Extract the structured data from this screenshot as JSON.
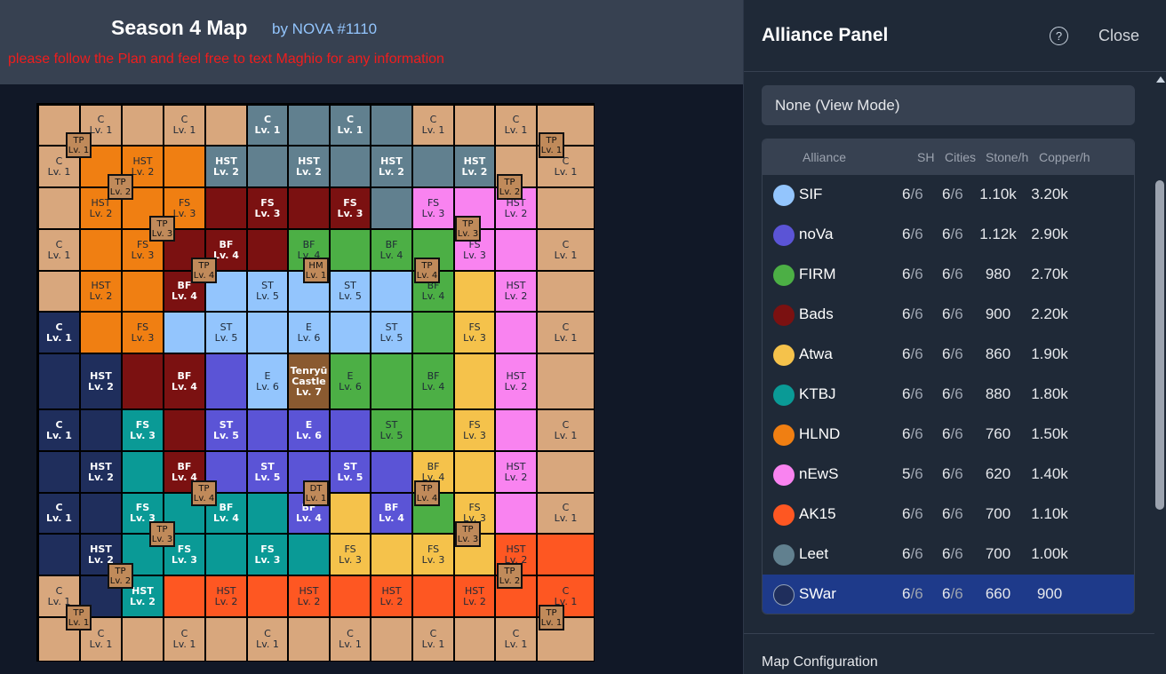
{
  "header": {
    "title": "Season 4 Map",
    "byline": "by NOVA #1110",
    "notice": "please follow the Plan and feel free to text Maghio for any information"
  },
  "colors": {
    "SIF": "#93c5fd",
    "noVa": "#5b54d6",
    "FIRM": "#4caf45",
    "Bads": "#7b1111",
    "Atwa": "#f5c24b",
    "KTBJ": "#0a9a96",
    "HLND": "#f07f12",
    "nEwS": "#f983f0",
    "AK15": "#fe5722",
    "Leet": "#61808f",
    "SWar": "#1f2e5c",
    "none": "#d8a77d",
    "castle": "#8a5a30"
  },
  "map": {
    "grid": 13,
    "rows": [
      [
        [
          "none",
          "",
          ""
        ],
        [
          "none",
          "C",
          "Lv. 1"
        ],
        [
          "none",
          "",
          ""
        ],
        [
          "none",
          "C",
          "Lv. 1"
        ],
        [
          "none",
          "",
          ""
        ],
        [
          "Leet",
          "C",
          "Lv. 1"
        ],
        [
          "Leet",
          "",
          ""
        ],
        [
          "Leet",
          "C",
          "Lv. 1"
        ],
        [
          "Leet",
          "",
          ""
        ],
        [
          "none",
          "C",
          "Lv. 1"
        ],
        [
          "none",
          "",
          ""
        ],
        [
          "none",
          "C",
          "Lv. 1"
        ],
        [
          "none",
          "",
          ""
        ]
      ],
      [
        [
          "none",
          "C",
          "Lv. 1"
        ],
        [
          "HLND",
          "",
          ""
        ],
        [
          "HLND",
          "HST",
          "Lv. 2"
        ],
        [
          "HLND",
          "",
          ""
        ],
        [
          "Leet",
          "HST",
          "Lv. 2"
        ],
        [
          "Leet",
          "",
          ""
        ],
        [
          "Leet",
          "HST",
          "Lv. 2"
        ],
        [
          "Leet",
          "",
          ""
        ],
        [
          "Leet",
          "HST",
          "Lv. 2"
        ],
        [
          "Leet",
          "",
          ""
        ],
        [
          "Leet",
          "HST",
          "Lv. 2"
        ],
        [
          "none",
          "",
          ""
        ],
        [
          "none",
          "C",
          "Lv. 1"
        ]
      ],
      [
        [
          "none",
          "",
          ""
        ],
        [
          "HLND",
          "HST",
          "Lv. 2"
        ],
        [
          "HLND",
          "",
          ""
        ],
        [
          "HLND",
          "FS",
          "Lv. 3"
        ],
        [
          "Bads",
          "",
          ""
        ],
        [
          "Bads",
          "FS",
          "Lv. 3"
        ],
        [
          "Bads",
          "",
          ""
        ],
        [
          "Bads",
          "FS",
          "Lv. 3"
        ],
        [
          "Leet",
          "",
          ""
        ],
        [
          "nEwS",
          "FS",
          "Lv. 3"
        ],
        [
          "nEwS",
          "",
          ""
        ],
        [
          "nEwS",
          "HST",
          "Lv. 2"
        ],
        [
          "none",
          "",
          ""
        ]
      ],
      [
        [
          "none",
          "C",
          "Lv. 1"
        ],
        [
          "HLND",
          "",
          ""
        ],
        [
          "HLND",
          "FS",
          "Lv. 3"
        ],
        [
          "Bads",
          "",
          ""
        ],
        [
          "Bads",
          "BF",
          "Lv. 4"
        ],
        [
          "Bads",
          "",
          ""
        ],
        [
          "FIRM",
          "BF",
          "Lv. 4"
        ],
        [
          "FIRM",
          "",
          ""
        ],
        [
          "FIRM",
          "BF",
          "Lv. 4"
        ],
        [
          "FIRM",
          "",
          ""
        ],
        [
          "nEwS",
          "FS",
          "Lv. 3"
        ],
        [
          "nEwS",
          "",
          ""
        ],
        [
          "none",
          "C",
          "Lv. 1"
        ]
      ],
      [
        [
          "none",
          "",
          ""
        ],
        [
          "HLND",
          "HST",
          "Lv. 2"
        ],
        [
          "HLND",
          "",
          ""
        ],
        [
          "Bads",
          "BF",
          "Lv. 4"
        ],
        [
          "SIF",
          "",
          ""
        ],
        [
          "SIF",
          "ST",
          "Lv. 5"
        ],
        [
          "SIF",
          "",
          ""
        ],
        [
          "SIF",
          "ST",
          "Lv. 5"
        ],
        [
          "SIF",
          "",
          ""
        ],
        [
          "FIRM",
          "BF",
          "Lv. 4"
        ],
        [
          "Atwa",
          "",
          ""
        ],
        [
          "nEwS",
          "HST",
          "Lv. 2"
        ],
        [
          "none",
          "",
          ""
        ]
      ],
      [
        [
          "SWar",
          "C",
          "Lv. 1"
        ],
        [
          "HLND",
          "",
          ""
        ],
        [
          "HLND",
          "FS",
          "Lv. 3"
        ],
        [
          "SIF",
          "",
          ""
        ],
        [
          "SIF",
          "ST",
          "Lv. 5"
        ],
        [
          "SIF",
          "",
          ""
        ],
        [
          "SIF",
          "E",
          "Lv. 6"
        ],
        [
          "SIF",
          "",
          ""
        ],
        [
          "SIF",
          "ST",
          "Lv. 5"
        ],
        [
          "FIRM",
          "",
          ""
        ],
        [
          "Atwa",
          "FS",
          "Lv. 3"
        ],
        [
          "nEwS",
          "",
          ""
        ],
        [
          "none",
          "C",
          "Lv. 1"
        ]
      ],
      [
        [
          "SWar",
          "",
          ""
        ],
        [
          "SWar",
          "HST",
          "Lv. 2"
        ],
        [
          "Bads",
          "",
          ""
        ],
        [
          "Bads",
          "BF",
          "Lv. 4"
        ],
        [
          "noVa",
          "",
          ""
        ],
        [
          "SIF",
          "E",
          "Lv. 6"
        ],
        [
          "castle",
          "Tenryū Castle",
          "Lv. 7"
        ],
        [
          "FIRM",
          "E",
          "Lv. 6"
        ],
        [
          "FIRM",
          "",
          ""
        ],
        [
          "FIRM",
          "BF",
          "Lv. 4"
        ],
        [
          "Atwa",
          "",
          ""
        ],
        [
          "nEwS",
          "HST",
          "Lv. 2"
        ],
        [
          "none",
          "",
          ""
        ]
      ],
      [
        [
          "SWar",
          "C",
          "Lv. 1"
        ],
        [
          "SWar",
          "",
          ""
        ],
        [
          "KTBJ",
          "FS",
          "Lv. 3"
        ],
        [
          "Bads",
          "",
          ""
        ],
        [
          "noVa",
          "ST",
          "Lv. 5"
        ],
        [
          "noVa",
          "",
          ""
        ],
        [
          "noVa",
          "E",
          "Lv. 6"
        ],
        [
          "noVa",
          "",
          ""
        ],
        [
          "FIRM",
          "ST",
          "Lv. 5"
        ],
        [
          "FIRM",
          "",
          ""
        ],
        [
          "Atwa",
          "FS",
          "Lv. 3"
        ],
        [
          "nEwS",
          "",
          ""
        ],
        [
          "none",
          "C",
          "Lv. 1"
        ]
      ],
      [
        [
          "SWar",
          "",
          ""
        ],
        [
          "SWar",
          "HST",
          "Lv. 2"
        ],
        [
          "KTBJ",
          "",
          ""
        ],
        [
          "Bads",
          "BF",
          "Lv. 4"
        ],
        [
          "noVa",
          "",
          ""
        ],
        [
          "noVa",
          "ST",
          "Lv. 5"
        ],
        [
          "noVa",
          "",
          ""
        ],
        [
          "noVa",
          "ST",
          "Lv. 5"
        ],
        [
          "noVa",
          "",
          ""
        ],
        [
          "Atwa",
          "BF",
          "Lv. 4"
        ],
        [
          "Atwa",
          "",
          ""
        ],
        [
          "nEwS",
          "HST",
          "Lv. 2"
        ],
        [
          "none",
          "",
          ""
        ]
      ],
      [
        [
          "SWar",
          "C",
          "Lv. 1"
        ],
        [
          "SWar",
          "",
          ""
        ],
        [
          "KTBJ",
          "FS",
          "Lv. 3"
        ],
        [
          "KTBJ",
          "",
          ""
        ],
        [
          "KTBJ",
          "BF",
          "Lv. 4"
        ],
        [
          "KTBJ",
          "",
          ""
        ],
        [
          "noVa",
          "BF",
          "Lv. 4"
        ],
        [
          "Atwa",
          "",
          ""
        ],
        [
          "noVa",
          "BF",
          "Lv. 4"
        ],
        [
          "FIRM",
          "",
          ""
        ],
        [
          "Atwa",
          "FS",
          "Lv. 3"
        ],
        [
          "nEwS",
          "",
          ""
        ],
        [
          "none",
          "C",
          "Lv. 1"
        ]
      ],
      [
        [
          "SWar",
          "",
          ""
        ],
        [
          "SWar",
          "HST",
          "Lv. 2"
        ],
        [
          "KTBJ",
          "",
          ""
        ],
        [
          "KTBJ",
          "FS",
          "Lv. 3"
        ],
        [
          "KTBJ",
          "",
          ""
        ],
        [
          "KTBJ",
          "FS",
          "Lv. 3"
        ],
        [
          "KTBJ",
          "",
          ""
        ],
        [
          "Atwa",
          "FS",
          "Lv. 3"
        ],
        [
          "Atwa",
          "",
          ""
        ],
        [
          "Atwa",
          "FS",
          "Lv. 3"
        ],
        [
          "Atwa",
          "",
          ""
        ],
        [
          "AK15",
          "HST",
          "Lv. 2"
        ],
        [
          "AK15",
          "",
          ""
        ]
      ],
      [
        [
          "none",
          "C",
          "Lv. 1"
        ],
        [
          "SWar",
          "",
          ""
        ],
        [
          "KTBJ",
          "HST",
          "Lv. 2"
        ],
        [
          "AK15",
          "",
          ""
        ],
        [
          "AK15",
          "HST",
          "Lv. 2"
        ],
        [
          "AK15",
          "",
          ""
        ],
        [
          "AK15",
          "HST",
          "Lv. 2"
        ],
        [
          "AK15",
          "",
          ""
        ],
        [
          "AK15",
          "HST",
          "Lv. 2"
        ],
        [
          "AK15",
          "",
          ""
        ],
        [
          "AK15",
          "HST",
          "Lv. 2"
        ],
        [
          "AK15",
          "",
          ""
        ],
        [
          "AK15",
          "C",
          "Lv. 1"
        ]
      ],
      [
        [
          "none",
          "",
          ""
        ],
        [
          "none",
          "C",
          "Lv. 1"
        ],
        [
          "none",
          "",
          ""
        ],
        [
          "none",
          "C",
          "Lv. 1"
        ],
        [
          "none",
          "",
          ""
        ],
        [
          "none",
          "C",
          "Lv. 1"
        ],
        [
          "none",
          "",
          ""
        ],
        [
          "none",
          "C",
          "Lv. 1"
        ],
        [
          "none",
          "",
          ""
        ],
        [
          "none",
          "C",
          "Lv. 1"
        ],
        [
          "none",
          "",
          ""
        ],
        [
          "none",
          "C",
          "Lv. 1"
        ],
        [
          "none",
          "",
          ""
        ]
      ]
    ],
    "markers": [
      [
        "TP",
        "Lv. 1"
      ],
      [
        "TP",
        "Lv. 1"
      ],
      [
        "TP",
        "Lv. 2"
      ],
      [
        "TP",
        "Lv. 2"
      ],
      [
        "TP",
        "Lv. 3"
      ],
      [
        "TP",
        "Lv. 3"
      ],
      [
        "TP",
        "Lv. 4"
      ],
      [
        "HM",
        "Lv. 1"
      ],
      [
        "TP",
        "Lv. 4"
      ],
      [
        "TP",
        "Lv. 4"
      ],
      [
        "DT",
        "Lv. 1"
      ],
      [
        "TP",
        "Lv. 4"
      ],
      [
        "TP",
        "Lv. 3"
      ],
      [
        "TP",
        "Lv. 3"
      ],
      [
        "TP",
        "Lv. 2"
      ],
      [
        "TP",
        "Lv. 2"
      ],
      [
        "TP",
        "Lv. 1"
      ],
      [
        "TP",
        "Lv. 1"
      ]
    ]
  },
  "panel": {
    "title": "Alliance Panel",
    "help_icon": "?",
    "close_label": "Close",
    "select_value": "None (View Mode)",
    "columns": [
      "Alliance",
      "SH",
      "Cities",
      "Stone/h",
      "Copper/h"
    ],
    "rows": [
      {
        "name": "SIF",
        "sh": "6",
        "sh_max": "/6",
        "cities": "6",
        "cities_max": "/6",
        "stone": "1.10k",
        "copper": "3.20k"
      },
      {
        "name": "noVa",
        "sh": "6",
        "sh_max": "/6",
        "cities": "6",
        "cities_max": "/6",
        "stone": "1.12k",
        "copper": "2.90k"
      },
      {
        "name": "FIRM",
        "sh": "6",
        "sh_max": "/6",
        "cities": "6",
        "cities_max": "/6",
        "stone": "980",
        "copper": "2.70k"
      },
      {
        "name": "Bads",
        "sh": "6",
        "sh_max": "/6",
        "cities": "6",
        "cities_max": "/6",
        "stone": "900",
        "copper": "2.20k"
      },
      {
        "name": "Atwa",
        "sh": "6",
        "sh_max": "/6",
        "cities": "6",
        "cities_max": "/6",
        "stone": "860",
        "copper": "1.90k"
      },
      {
        "name": "KTBJ",
        "sh": "6",
        "sh_max": "/6",
        "cities": "6",
        "cities_max": "/6",
        "stone": "880",
        "copper": "1.80k"
      },
      {
        "name": "HLND",
        "sh": "6",
        "sh_max": "/6",
        "cities": "6",
        "cities_max": "/6",
        "stone": "760",
        "copper": "1.50k"
      },
      {
        "name": "nEwS",
        "sh": "5",
        "sh_max": "/6",
        "cities": "6",
        "cities_max": "/6",
        "stone": "620",
        "copper": "1.40k"
      },
      {
        "name": "AK15",
        "sh": "6",
        "sh_max": "/6",
        "cities": "6",
        "cities_max": "/6",
        "stone": "700",
        "copper": "1.10k"
      },
      {
        "name": "Leet",
        "sh": "6",
        "sh_max": "/6",
        "cities": "6",
        "cities_max": "/6",
        "stone": "700",
        "copper": "1.00k"
      },
      {
        "name": "SWar",
        "sh": "6",
        "sh_max": "/6",
        "cities": "6",
        "cities_max": "/6",
        "stone": "660",
        "copper": "900"
      }
    ],
    "map_config_label": "Map Configuration"
  }
}
